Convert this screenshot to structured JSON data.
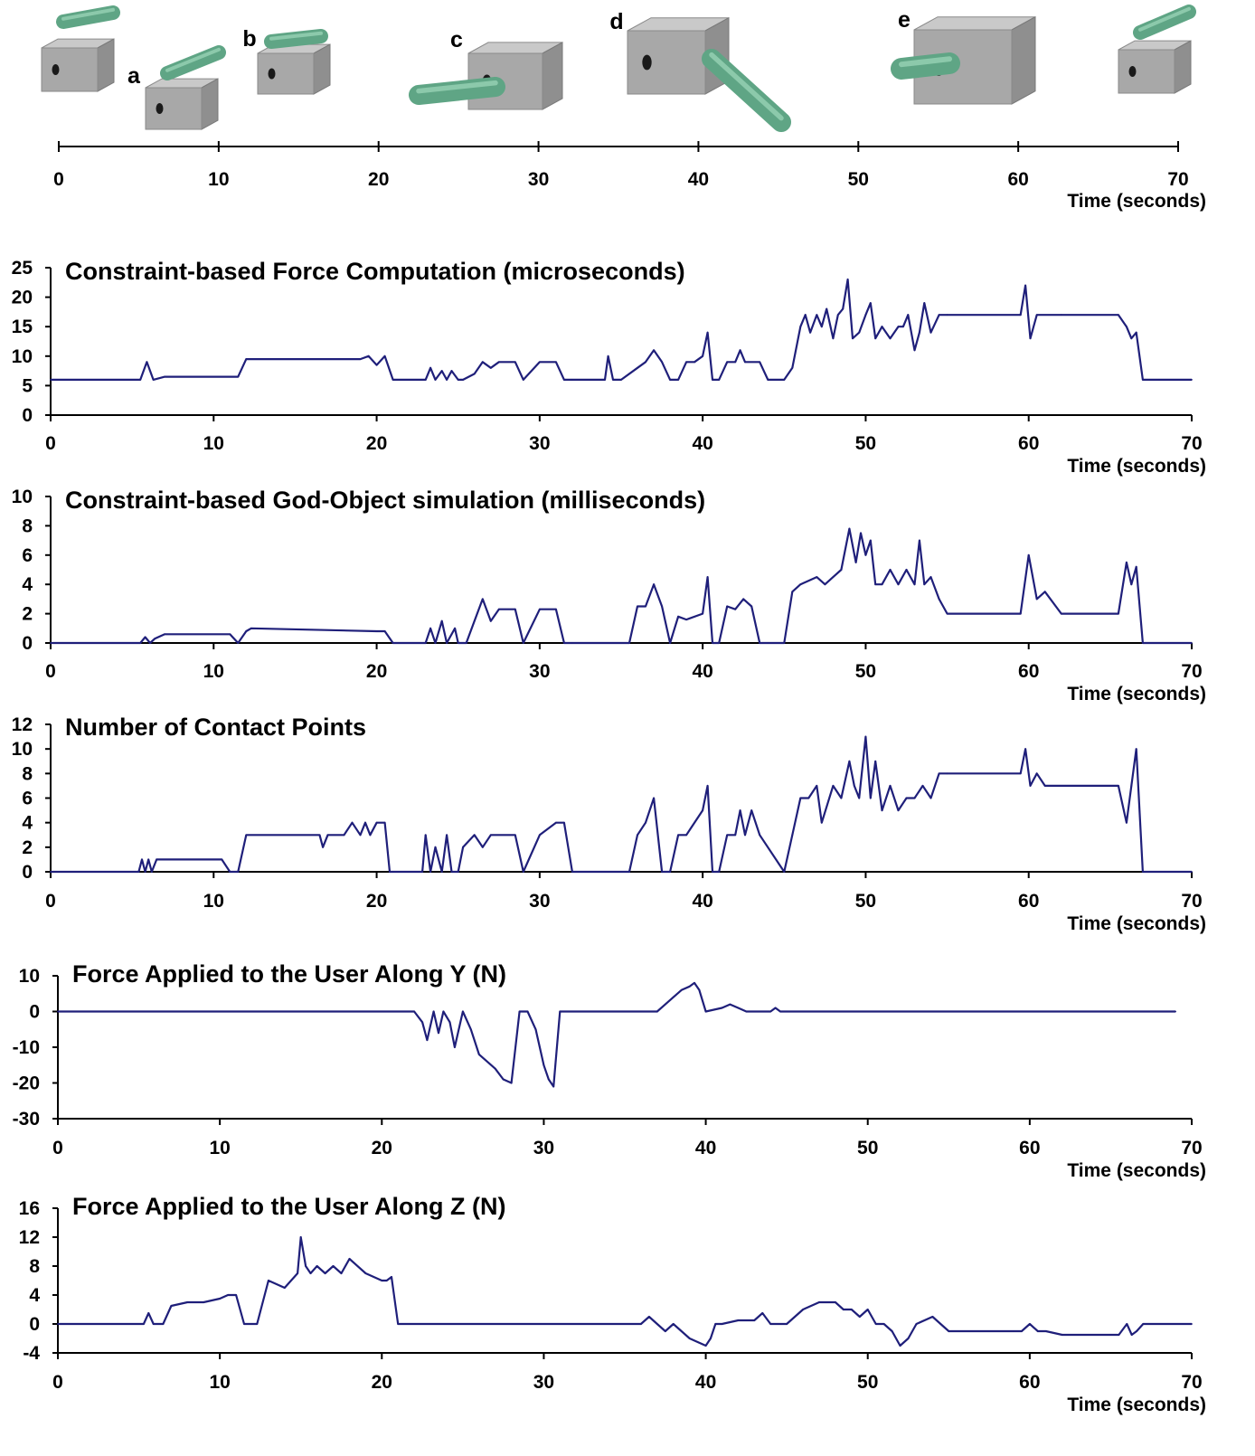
{
  "timeline": {
    "x_ticks": [
      "0",
      "10",
      "20",
      "30",
      "40",
      "50",
      "60",
      "70"
    ],
    "xlabel": "Time (seconds)",
    "events": [
      {
        "label": "",
        "t": 0
      },
      {
        "label": "a",
        "t": 8.5
      },
      {
        "label": "b",
        "t": 14
      },
      {
        "label": "c",
        "t": 26
      },
      {
        "label": "d",
        "t": 38
      },
      {
        "label": "e",
        "t": 55
      },
      {
        "label": "",
        "t": 69
      }
    ],
    "colors": {
      "cube": "#a8a8a8",
      "rod": "#5fa585"
    }
  },
  "chart_data": [
    {
      "type": "line",
      "title": "Constraint-based Force Computation (microseconds)",
      "xlabel": "Time (seconds)",
      "ylabel": "",
      "xlim": [
        0,
        70
      ],
      "ylim": [
        0,
        25
      ],
      "y_ticks": [
        "0",
        "5",
        "10",
        "15",
        "20",
        "25"
      ],
      "x_ticks": [
        "0",
        "10",
        "20",
        "30",
        "40",
        "50",
        "60",
        "70"
      ],
      "x": [
        0,
        5.5,
        5.9,
        6.3,
        7,
        11.5,
        12,
        19,
        19.5,
        20,
        20.5,
        21,
        23,
        23.3,
        23.6,
        24,
        24.3,
        24.6,
        25,
        25.3,
        26,
        26.5,
        27,
        27.5,
        28.5,
        29,
        30,
        31,
        31.5,
        32,
        34,
        34.2,
        34.5,
        35,
        36,
        36.5,
        37,
        37.5,
        38,
        38.5,
        39,
        39.5,
        40,
        40.3,
        40.6,
        41,
        41.5,
        42,
        42.3,
        42.6,
        43.5,
        44,
        45,
        45.5,
        46,
        46.3,
        46.6,
        47,
        47.3,
        47.6,
        48,
        48.3,
        48.6,
        48.9,
        49.2,
        49.6,
        50,
        50.3,
        50.6,
        51,
        51.5,
        52,
        52.3,
        52.6,
        53,
        53.3,
        53.6,
        54,
        54.5,
        55,
        59.5,
        59.8,
        60.1,
        60.5,
        62,
        65.5,
        66,
        66.3,
        66.6,
        67,
        68,
        70
      ],
      "series": [
        {
          "name": "",
          "color": "#1f1f7a",
          "values": [
            6,
            6,
            9,
            6,
            6.5,
            6.5,
            9.5,
            9.5,
            10,
            8.5,
            10,
            6,
            6,
            8,
            6,
            7.5,
            6,
            7.5,
            6,
            6,
            7,
            9,
            8,
            9,
            9,
            6,
            9,
            9,
            6,
            6,
            6,
            10,
            6,
            6,
            8,
            9,
            11,
            9,
            6,
            6,
            9,
            9,
            10,
            14,
            6,
            6,
            9,
            9,
            11,
            9,
            9,
            6,
            6,
            8,
            15,
            17,
            14,
            17,
            15,
            18,
            13,
            17,
            18,
            23,
            13,
            14,
            17,
            19,
            13,
            15,
            13,
            15,
            15,
            17,
            11,
            14,
            19,
            14,
            17,
            17,
            17,
            22,
            13,
            17,
            17,
            17,
            15,
            13,
            14,
            6,
            6,
            6
          ]
        }
      ]
    },
    {
      "type": "line",
      "title": "Constraint-based God-Object simulation (milliseconds)",
      "xlabel": "Time (seconds)",
      "ylabel": "",
      "xlim": [
        0,
        70
      ],
      "ylim": [
        0,
        10
      ],
      "y_ticks": [
        "0",
        "2",
        "4",
        "6",
        "8",
        "10"
      ],
      "x_ticks": [
        "0",
        "10",
        "20",
        "30",
        "40",
        "50",
        "60",
        "70"
      ],
      "x": [
        0,
        5.5,
        5.8,
        6.1,
        6.4,
        7,
        11,
        11.5,
        12,
        12.3,
        20,
        20.5,
        21,
        23,
        23.3,
        23.6,
        24,
        24.3,
        24.8,
        25,
        25.5,
        26,
        26.5,
        27,
        27.5,
        28.5,
        29,
        30,
        31,
        31.5,
        32,
        35.5,
        36,
        36.5,
        37,
        37.5,
        38,
        38.5,
        39,
        40,
        40.3,
        40.6,
        41,
        41.5,
        42,
        42.5,
        43,
        43.5,
        44,
        45,
        45.5,
        46,
        47,
        47.5,
        48,
        48.5,
        49,
        49.4,
        49.7,
        50,
        50.3,
        50.6,
        51,
        51.5,
        52,
        52.5,
        53,
        53.3,
        53.6,
        54,
        54.5,
        55,
        59.5,
        60,
        60.5,
        61,
        62,
        65,
        65.5,
        66,
        66.3,
        66.6,
        67,
        70
      ],
      "series": [
        {
          "name": "",
          "color": "#1f1f7a",
          "values": [
            0,
            0,
            0.4,
            0,
            0.3,
            0.6,
            0.6,
            0,
            0.8,
            1,
            0.8,
            0.8,
            0,
            0,
            1,
            0,
            1.5,
            0,
            1,
            0,
            0,
            1.5,
            3,
            1.5,
            2.3,
            2.3,
            0,
            2.3,
            2.3,
            0,
            0,
            0,
            2.5,
            2.5,
            4,
            2.5,
            0,
            1.8,
            1.6,
            2,
            4.5,
            0,
            0,
            2.5,
            2.3,
            3,
            2.5,
            0,
            0,
            0,
            3.5,
            4,
            4.5,
            4,
            4.5,
            5,
            7.8,
            5.5,
            7.5,
            6,
            7,
            4,
            4,
            5,
            4,
            5,
            4,
            7,
            4,
            4.5,
            3,
            2,
            2,
            6,
            3,
            3.5,
            2,
            2,
            2,
            5.5,
            4,
            5.2,
            0,
            0
          ]
        }
      ]
    },
    {
      "type": "line",
      "title": "Number of Contact Points",
      "xlabel": "Time (seconds)",
      "ylabel": "",
      "xlim": [
        0,
        70
      ],
      "ylim": [
        0,
        12
      ],
      "y_ticks": [
        "0",
        "2",
        "4",
        "6",
        "8",
        "10",
        "12"
      ],
      "x_ticks": [
        "0",
        "10",
        "20",
        "30",
        "40",
        "50",
        "60",
        "70"
      ],
      "x": [
        0,
        5.4,
        5.6,
        5.8,
        6,
        6.2,
        6.5,
        10.5,
        11,
        11.5,
        12,
        16.5,
        16.7,
        17,
        18,
        18.5,
        19,
        19.3,
        19.6,
        20,
        20.5,
        20.8,
        21,
        22.8,
        23,
        23.3,
        23.6,
        24,
        24.3,
        24.6,
        25,
        25.3,
        26,
        26.5,
        27,
        28.5,
        29,
        30,
        31,
        31.5,
        32,
        35.5,
        36,
        36.5,
        37,
        37.5,
        38,
        38.5,
        39,
        40,
        40.3,
        40.6,
        41,
        41.5,
        42,
        42.3,
        42.6,
        43,
        43.5,
        45,
        45.5,
        46,
        46.5,
        47,
        47.3,
        48,
        48.5,
        49,
        49.3,
        49.6,
        50,
        50.3,
        50.6,
        51,
        51.5,
        52,
        52.5,
        53,
        53.5,
        54,
        54.5,
        55,
        59.5,
        59.8,
        60.1,
        60.5,
        61,
        65.5,
        66,
        66.3,
        66.6,
        67,
        70
      ],
      "series": [
        {
          "name": "",
          "color": "#1f1f7a",
          "values": [
            0,
            0,
            1,
            0,
            1,
            0,
            1,
            1,
            0,
            0,
            3,
            3,
            2,
            3,
            3,
            4,
            3,
            4,
            3,
            4,
            4,
            0,
            0,
            0,
            3,
            0,
            2,
            0,
            3,
            0,
            0,
            2,
            3,
            2,
            3,
            3,
            0,
            3,
            4,
            4,
            0,
            0,
            3,
            4,
            6,
            0,
            0,
            3,
            3,
            5,
            7,
            0,
            0,
            3,
            3,
            5,
            3,
            5,
            3,
            0,
            3,
            6,
            6,
            7,
            4,
            7,
            6,
            9,
            7,
            6,
            11,
            6,
            9,
            5,
            7,
            5,
            6,
            6,
            7,
            6,
            8,
            8,
            8,
            10,
            7,
            8,
            7,
            7,
            4,
            7,
            10,
            0,
            0
          ]
        }
      ]
    },
    {
      "type": "line",
      "title": "Force Applied to the User Along Y (N)",
      "xlabel": "Time (seconds)",
      "ylabel": "",
      "xlim": [
        0,
        70
      ],
      "ylim": [
        -30,
        10
      ],
      "y_ticks": [
        "-30",
        "-20",
        "-10",
        "0",
        "10"
      ],
      "x_ticks": [
        "0",
        "10",
        "20",
        "30",
        "40",
        "50",
        "60",
        "70"
      ],
      "x": [
        0,
        22,
        22.5,
        22.8,
        23.2,
        23.5,
        23.8,
        24.2,
        24.5,
        25,
        25.5,
        26,
        27,
        27.5,
        28,
        28.5,
        29,
        29.5,
        30,
        30.3,
        30.6,
        31,
        31.2,
        36,
        37,
        37.5,
        38,
        38.5,
        39,
        39.3,
        39.6,
        40,
        41,
        41.5,
        42,
        42.5,
        44,
        44.3,
        44.6,
        45,
        69
      ],
      "series": [
        {
          "name": "",
          "color": "#1f1f7a",
          "values": [
            0,
            0,
            -3,
            -8,
            0,
            -6,
            0,
            -3,
            -10,
            0,
            -5,
            -12,
            -16,
            -19,
            -20,
            0,
            0,
            -5,
            -15,
            -19,
            -21,
            0,
            0,
            0,
            0,
            2,
            4,
            6,
            7,
            8,
            6,
            0,
            1,
            2,
            1,
            0,
            0,
            1,
            0,
            0,
            0
          ]
        }
      ]
    },
    {
      "type": "line",
      "title": "Force Applied to the User Along Z (N)",
      "xlabel": "Time (seconds)",
      "ylabel": "",
      "xlim": [
        0,
        70
      ],
      "ylim": [
        -4,
        16
      ],
      "y_ticks": [
        "-4",
        "0",
        "4",
        "8",
        "12",
        "16"
      ],
      "x_ticks": [
        "0",
        "10",
        "20",
        "30",
        "40",
        "50",
        "60",
        "70"
      ],
      "x": [
        0,
        5.3,
        5.6,
        5.9,
        6.5,
        7,
        8,
        9,
        10,
        10.5,
        11,
        11.5,
        12,
        12.3,
        13,
        14,
        14.8,
        15,
        15.3,
        15.6,
        16,
        16.5,
        17,
        17.5,
        18,
        19,
        20,
        20.3,
        20.6,
        21,
        36,
        36.5,
        37,
        37.5,
        38,
        39,
        39.5,
        40,
        40.3,
        40.6,
        41,
        42,
        43,
        43.5,
        44,
        45,
        46,
        47,
        48,
        48.5,
        49,
        49.5,
        50,
        50.5,
        51,
        51.5,
        52,
        52.5,
        53,
        54,
        54.5,
        55,
        59,
        59.5,
        60,
        60.5,
        61,
        62,
        65,
        65.5,
        66,
        66.3,
        66.6,
        67,
        70
      ],
      "series": [
        {
          "name": "",
          "color": "#1f1f7a",
          "values": [
            0,
            0,
            1.5,
            0,
            0,
            2.5,
            3,
            3,
            3.5,
            4,
            4,
            0,
            0,
            0,
            6,
            5,
            7,
            12,
            8,
            7,
            8,
            7,
            8,
            7,
            9,
            7,
            6,
            6,
            6.5,
            0,
            0,
            1,
            0,
            -1,
            0,
            -2,
            -2.5,
            -3,
            -2,
            0,
            0,
            0.5,
            0.5,
            1.5,
            0,
            0,
            2,
            3,
            3,
            2,
            2,
            1,
            2,
            0,
            0,
            -1,
            -3,
            -2,
            0,
            1,
            0,
            -1,
            -1,
            -1,
            0,
            -1,
            -1,
            -1.5,
            -1.5,
            -1.5,
            0,
            -1.5,
            -1,
            0,
            0
          ]
        }
      ]
    }
  ]
}
